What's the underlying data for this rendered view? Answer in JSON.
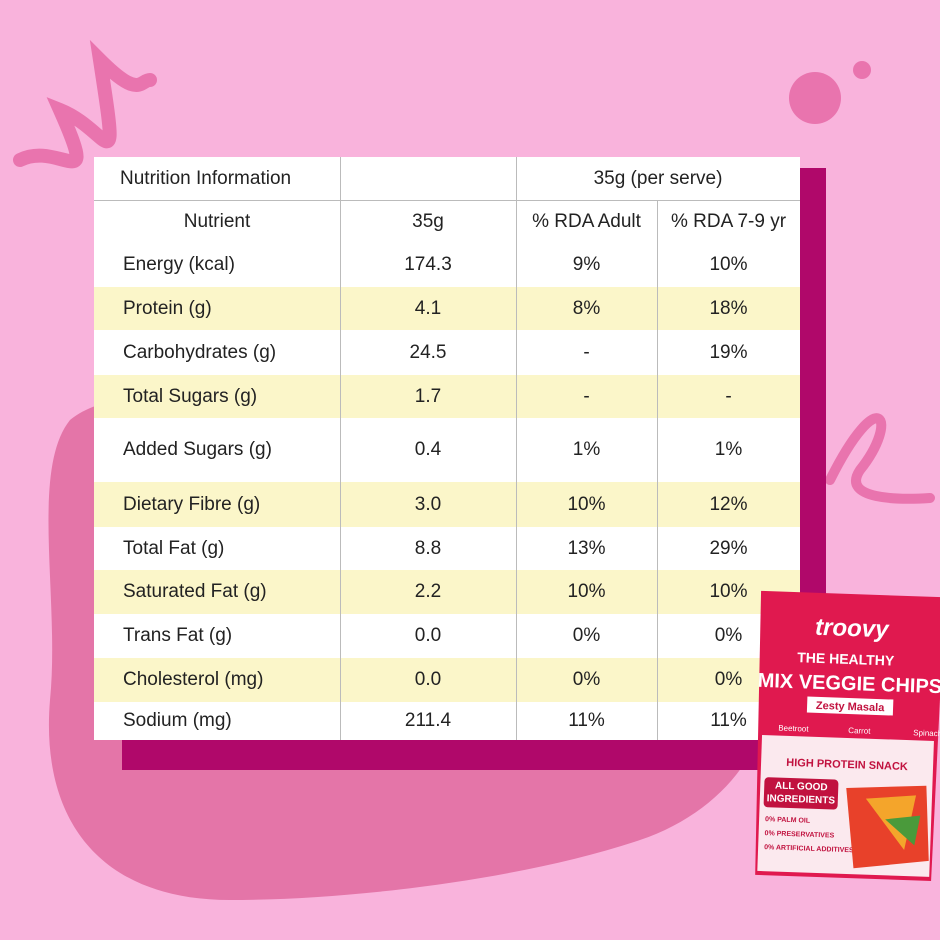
{
  "table": {
    "title": "Nutrition Information",
    "serve": "35g (per serve)",
    "columns": [
      "Nutrient",
      "35g",
      "% RDA Adult",
      "% RDA 7-9 yr"
    ],
    "rows": [
      [
        "Energy (kcal)",
        "174.3",
        "9%",
        "10%"
      ],
      [
        "Protein (g)",
        "4.1",
        "8%",
        "18%"
      ],
      [
        "Carbohydrates (g)",
        "24.5",
        "-",
        "19%"
      ],
      [
        "Total Sugars (g)",
        "1.7",
        "-",
        "-"
      ],
      [
        "Added Sugars (g)",
        "0.4",
        "1%",
        "1%"
      ],
      [
        "Dietary Fibre (g)",
        "3.0",
        "10%",
        "12%"
      ],
      [
        "Total Fat (g)",
        "8.8",
        "13%",
        "29%"
      ],
      [
        "Saturated Fat (g)",
        "2.2",
        "10%",
        "10%"
      ],
      [
        "Trans Fat (g)",
        "0.0",
        "0%",
        "0%"
      ],
      [
        "Cholesterol (mg)",
        "0.0",
        "0%",
        "0%"
      ],
      [
        "Sodium (mg)",
        "211.4",
        "11%",
        "11%"
      ]
    ]
  },
  "package": {
    "brand": "troovy",
    "line1": "THE HEALTHY",
    "line2": "MIX VEGGIE CHIPS",
    "flavor": "Zesty Masala",
    "veggies": [
      "Beetroot",
      "Carrot",
      "Spinach"
    ],
    "tag": "HIGH PROTEIN SNACK",
    "badge": "ALL GOOD INGREDIENTS",
    "claims": [
      "0% PALM OIL",
      "0% PRESERVATIVES",
      "0% ARTIFICIAL ADDITIVES"
    ]
  }
}
